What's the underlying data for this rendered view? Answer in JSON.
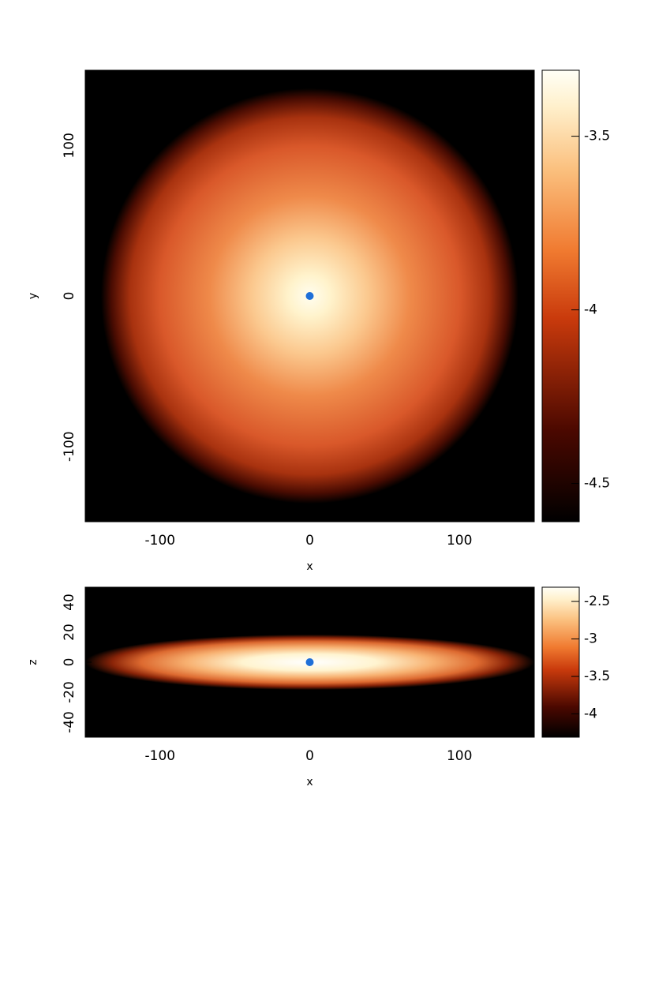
{
  "chart_data": [
    {
      "type": "heatmap",
      "xlabel": "x",
      "ylabel": "y",
      "xlim": [
        -150,
        150
      ],
      "xticks": [
        -100,
        0,
        100
      ],
      "ylim": [
        -150,
        150
      ],
      "yticks": [
        -100,
        0,
        100
      ],
      "colorbar": {
        "lim": [
          -4.61,
          -3.31
        ],
        "ticks": [
          -4.5,
          -4,
          -3.5
        ]
      },
      "points": {
        "x": [
          0
        ],
        "y": [
          0
        ],
        "color": "#1f6fd8"
      }
    },
    {
      "type": "heatmap",
      "xlabel": "x",
      "ylabel": "z",
      "xlim": [
        -150,
        150
      ],
      "xticks": [
        -100,
        0,
        100
      ],
      "ylim": [
        -50,
        50
      ],
      "yticks": [
        -40,
        -20,
        0,
        20,
        40
      ],
      "colorbar": {
        "lim": [
          -4.31,
          -2.31
        ],
        "ticks": [
          -4,
          -3.5,
          -3,
          -2.5
        ]
      },
      "points": {
        "x": [
          0
        ],
        "y": [
          0
        ],
        "color": "#1f6fd8"
      }
    }
  ]
}
